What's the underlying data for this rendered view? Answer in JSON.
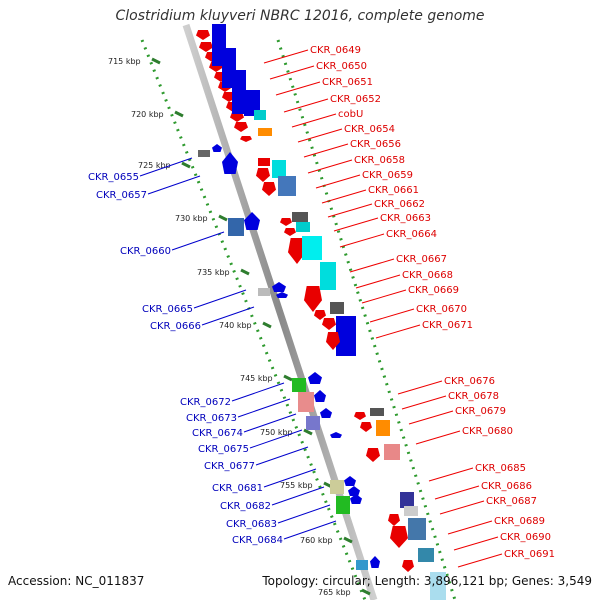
{
  "title": "Clostridium kluyveri NBRC 12016, complete genome",
  "accession": "Accession: NC_011837",
  "summary": "Topology: circular; Length: 3,896,121 bp; Genes: 3,549",
  "colors": {
    "forward": "#dd0000",
    "reverse": "#0000cc",
    "backbone": "#999999",
    "tick": "#339933"
  },
  "scale_ticks": [
    "715 kbp",
    "720 kbp",
    "725 kbp",
    "730 kbp",
    "735 kbp",
    "740 kbp",
    "745 kbp",
    "750 kbp",
    "755 kbp",
    "760 kbp",
    "765 kbp"
  ],
  "left_labels": [
    "CKR_0655",
    "CKR_0657",
    "CKR_0660",
    "CKR_0665",
    "CKR_0666",
    "CKR_0672",
    "CKR_0673",
    "CKR_0674",
    "CKR_0675",
    "CKR_0677",
    "CKR_0681",
    "CKR_0682",
    "CKR_0683",
    "CKR_0684"
  ],
  "right_labels": [
    "CKR_0649",
    "CKR_0650",
    "CKR_0651",
    "CKR_0652",
    "cobU",
    "CKR_0654",
    "CKR_0656",
    "CKR_0658",
    "CKR_0659",
    "CKR_0661",
    "CKR_0662",
    "CKR_0663",
    "CKR_0664",
    "CKR_0667",
    "CKR_0668",
    "CKR_0669",
    "CKR_0670",
    "CKR_0671",
    "CKR_0676",
    "CKR_0678",
    "CKR_0679",
    "CKR_0680",
    "CKR_0685",
    "CKR_0686",
    "CKR_0687",
    "CKR_0689",
    "CKR_0690",
    "CKR_0691"
  ]
}
